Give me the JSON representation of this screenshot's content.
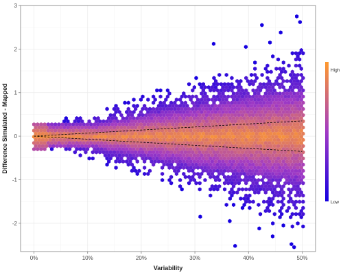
{
  "chart_data": {
    "type": "hexbin",
    "title": "",
    "xlabel": "Variability",
    "ylabel": "Difference Simulated - Mapped",
    "x_ticks": [
      {
        "value": 0,
        "label": "0%"
      },
      {
        "value": 10,
        "label": "10%"
      },
      {
        "value": 20,
        "label": "20%"
      },
      {
        "value": 30,
        "label": "30%"
      },
      {
        "value": 40,
        "label": "40%"
      },
      {
        "value": 50,
        "label": "50%"
      }
    ],
    "y_ticks": [
      {
        "value": -2,
        "label": "-2"
      },
      {
        "value": -1,
        "label": "-1"
      },
      {
        "value": 0,
        "label": "0"
      },
      {
        "value": 1,
        "label": "1"
      },
      {
        "value": 2,
        "label": "2"
      },
      {
        "value": 3,
        "label": "3"
      }
    ],
    "xlim": [
      -2.5,
      52.5
    ],
    "ylim": [
      -2.65,
      3.0
    ],
    "grid": true,
    "legend": {
      "position": "right",
      "high_label": "High",
      "low_label": "Low"
    },
    "colors": {
      "low": "#1500e0",
      "mid": "#a23bc4",
      "high": "#ff9a2e"
    },
    "envelope": {
      "description_free": true,
      "x_samples": [
        0,
        5,
        10,
        15,
        20,
        25,
        30,
        35,
        40,
        45,
        50
      ],
      "upper_dense": [
        0.02,
        0.12,
        0.24,
        0.36,
        0.47,
        0.58,
        0.68,
        0.78,
        0.88,
        0.98,
        1.05
      ],
      "lower_dense": [
        -0.02,
        -0.12,
        -0.24,
        -0.36,
        -0.47,
        -0.58,
        -0.68,
        -0.78,
        -0.88,
        -0.98,
        -1.05
      ],
      "upper_sparse": [
        0.3,
        0.45,
        0.65,
        0.85,
        1.05,
        1.25,
        1.45,
        1.65,
        1.85,
        2.1,
        2.5
      ],
      "lower_sparse": [
        -0.3,
        -0.45,
        -0.65,
        -0.85,
        -1.05,
        -1.25,
        -1.45,
        -1.7,
        -1.95,
        -2.25,
        -2.5
      ]
    },
    "reference_lines": [
      {
        "style": "dashed",
        "x": [
          0,
          50
        ],
        "y": [
          0,
          0.35
        ]
      },
      {
        "style": "dashed",
        "x": [
          0,
          50
        ],
        "y": [
          0,
          -0.35
        ]
      }
    ],
    "outliers": [
      {
        "x": 49.0,
        "y": 2.75
      },
      {
        "x": 49.6,
        "y": 2.62
      },
      {
        "x": 42.5,
        "y": 2.55
      },
      {
        "x": 46.0,
        "y": 2.38
      },
      {
        "x": 33.5,
        "y": 2.12
      },
      {
        "x": 39.5,
        "y": 2.05
      },
      {
        "x": 44.0,
        "y": 2.15
      },
      {
        "x": 37.5,
        "y": -2.52
      },
      {
        "x": 48.0,
        "y": -2.48
      },
      {
        "x": 48.5,
        "y": -2.55
      },
      {
        "x": 42.0,
        "y": -2.12
      },
      {
        "x": 46.5,
        "y": -2.05
      },
      {
        "x": 36.5,
        "y": -1.95
      },
      {
        "x": 44.5,
        "y": -2.3
      },
      {
        "x": 31.0,
        "y": -1.85
      }
    ]
  }
}
